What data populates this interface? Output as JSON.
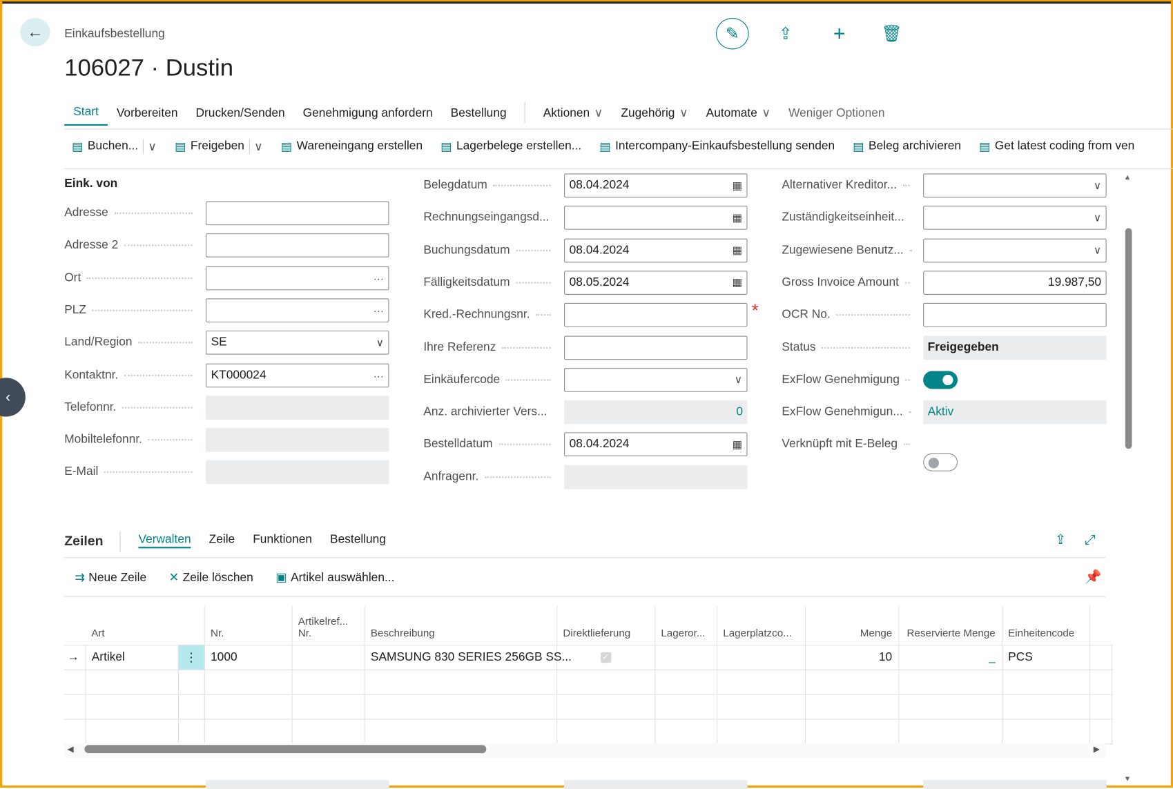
{
  "header": {
    "caption": "Einkaufsbestellung",
    "title": "106027 · Dustin",
    "icons": [
      "edit-icon",
      "share-icon",
      "add-icon",
      "delete-icon"
    ]
  },
  "menu": {
    "items": [
      "Start",
      "Vorbereiten",
      "Drucken/Senden",
      "Genehmigung anfordern",
      "Bestellung"
    ],
    "dropdowns": [
      "Aktionen",
      "Zugehörig",
      "Automate"
    ],
    "less": "Weniger Optionen"
  },
  "actions": [
    {
      "label": "Buchen...",
      "dd": true
    },
    {
      "label": "Freigeben",
      "dd": true
    },
    {
      "label": "Wareneingang erstellen"
    },
    {
      "label": "Lagerbelege erstellen..."
    },
    {
      "label": "Intercompany-Einkaufsbestellung senden"
    },
    {
      "label": "Beleg archivieren"
    },
    {
      "label": "Get latest coding from ven"
    }
  ],
  "form": {
    "group_title": "Eink. von",
    "left": [
      {
        "label": "Adresse",
        "type": "text",
        "value": ""
      },
      {
        "label": "Adresse 2",
        "type": "text",
        "value": ""
      },
      {
        "label": "Ort",
        "type": "lookup",
        "value": ""
      },
      {
        "label": "PLZ",
        "type": "lookup",
        "value": ""
      },
      {
        "label": "Land/Region",
        "type": "select",
        "value": "SE"
      },
      {
        "label": "Kontaktnr.",
        "type": "lookup",
        "value": "KT000024"
      },
      {
        "label": "Telefonnr.",
        "type": "ro",
        "value": ""
      },
      {
        "label": "Mobiltelefonnr.",
        "type": "ro",
        "value": ""
      },
      {
        "label": "E-Mail",
        "type": "ro",
        "value": ""
      }
    ],
    "middle": [
      {
        "label": "Belegdatum",
        "type": "date",
        "value": "08.04.2024"
      },
      {
        "label": "Rechnungseingangsd...",
        "type": "date",
        "value": ""
      },
      {
        "label": "Buchungsdatum",
        "type": "date",
        "value": "08.04.2024"
      },
      {
        "label": "Fälligkeitsdatum",
        "type": "date",
        "value": "08.05.2024"
      },
      {
        "label": "Kred.-Rechnungsnr.",
        "type": "text",
        "value": "",
        "required": true
      },
      {
        "label": "Ihre Referenz",
        "type": "text",
        "value": ""
      },
      {
        "label": "Einkäufercode",
        "type": "select",
        "value": ""
      },
      {
        "label": "Anz. archivierter Vers...",
        "type": "ro-num",
        "value": "0"
      },
      {
        "label": "Bestelldatum",
        "type": "date",
        "value": "08.04.2024"
      },
      {
        "label": "Anfragenr.",
        "type": "ro",
        "value": ""
      }
    ],
    "right": [
      {
        "label": "Alternativer Kreditor...",
        "type": "select",
        "value": ""
      },
      {
        "label": "Zuständigkeitseinheit...",
        "type": "select",
        "value": ""
      },
      {
        "label": "Zugewiesene Benutz...",
        "type": "select",
        "value": ""
      },
      {
        "label": "Gross Invoice Amount",
        "type": "num",
        "value": "19.987,50"
      },
      {
        "label": "OCR No.",
        "type": "text",
        "value": ""
      },
      {
        "label": "Status",
        "type": "ro-bold",
        "value": "Freigegeben"
      },
      {
        "label": "ExFlow Genehmigung",
        "type": "toggle",
        "on": true
      },
      {
        "label": "ExFlow Genehmigun...",
        "type": "ro-link",
        "value": "Aktiv"
      },
      {
        "label": "Verknüpft mit E-Beleg",
        "type": "toggle",
        "on": false
      }
    ]
  },
  "lines": {
    "title": "Zeilen",
    "tabs": [
      "Verwalten",
      "Zeile",
      "Funktionen",
      "Bestellung"
    ],
    "actions": [
      "Neue Zeile",
      "Zeile löschen",
      "Artikel auswählen..."
    ],
    "columns": [
      "",
      "Art",
      "",
      "Nr.",
      "Artikelref... Nr.",
      "Beschreibung",
      "Direktlieferung",
      "Lageror...",
      "Lagerplatzco...",
      "Menge",
      "Reservierte Menge",
      "Einheitencode",
      ""
    ],
    "rows": [
      {
        "art": "Artikel",
        "nr": "1000",
        "ref": "",
        "desc": "SAMSUNG 830 SERIES 256GB SS...",
        "direct": true,
        "lager": "",
        "platz": "",
        "menge": "10",
        "res": "_",
        "unit": "PCS"
      }
    ]
  },
  "colors": {
    "accent": "#008489",
    "frame": "#f0a30a"
  }
}
